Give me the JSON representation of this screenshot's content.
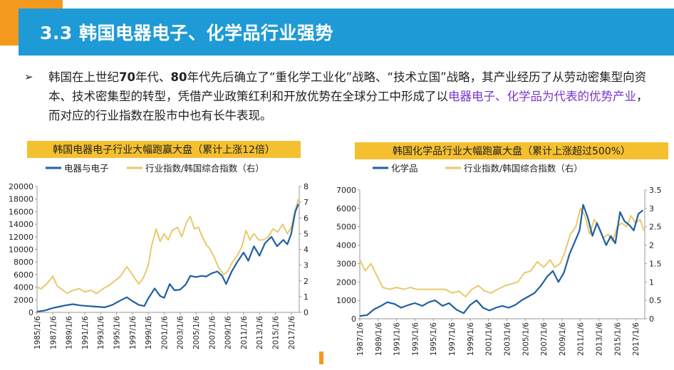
{
  "slide": {
    "title": "3.3 韩国电器电子、化学品行业强势",
    "bullet_symbol": "➢",
    "para_parts": [
      "韩国在上世纪",
      "70",
      "年代、",
      "80",
      "年代先后确立了“重化学工业化”战略、“技术立国”战略，其产业经历了从劳动密集型向资本、技术密集型的转型，凭借产业政策红利和开放优势在全球分工中形成了以",
      "电器电子、化学品为代表的优势产业",
      "，而对应的行业指数在股市中也有长牛表现。"
    ]
  },
  "colors": {
    "accent": "#1e9ad6",
    "orange": "#f39a1e",
    "label_bg": "#f5c030",
    "series_blue": "#1f5fa0",
    "series_gold": "#e8c96a",
    "highlight": "#7b35c9"
  },
  "chart_data": [
    {
      "type": "line",
      "title": "韩国电器电子行业大幅跑赢大盘（累计上涨12倍）",
      "series": [
        {
          "name": "电器与电子",
          "axis": "left",
          "x": [
            1985.0,
            1986.0,
            1987.0,
            1987.8,
            1988.5,
            1989.5,
            1990.5,
            1991.5,
            1992.5,
            1993.5,
            1994.5,
            1995.5,
            1996.3,
            1997.0,
            1997.8,
            1998.5,
            1999.0,
            1999.8,
            2000.5,
            2001.0,
            2001.7,
            2002.3,
            2003.0,
            2003.7,
            2004.3,
            2005.0,
            2005.7,
            2006.3,
            2007.0,
            2007.7,
            2008.3,
            2008.8,
            2009.5,
            2010.2,
            2011.0,
            2011.6,
            2012.3,
            2013.0,
            2013.7,
            2014.5,
            2015.2,
            2016.0,
            2016.5,
            2017.0,
            2017.5,
            2017.9
          ],
          "values": [
            100,
            300,
            700,
            900,
            1100,
            1300,
            1100,
            1000,
            900,
            800,
            1200,
            1900,
            2400,
            1800,
            1200,
            1000,
            2200,
            3800,
            2600,
            2300,
            4500,
            3500,
            3600,
            4400,
            5800,
            5600,
            5800,
            5700,
            6200,
            6500,
            5800,
            4500,
            6500,
            8000,
            9500,
            8200,
            10500,
            9000,
            11000,
            12000,
            10500,
            11500,
            10800,
            12500,
            16000,
            17200
          ]
        },
        {
          "name": "行业指数/韩国综合指数（右）",
          "axis": "right",
          "x": [
            1985.0,
            1985.5,
            1986.2,
            1987.0,
            1987.5,
            1988.0,
            1988.8,
            1989.5,
            1990.3,
            1991.0,
            1991.8,
            1992.5,
            1993.3,
            1994.0,
            1994.8,
            1995.5,
            1996.3,
            1997.0,
            1997.8,
            1998.4,
            1999.0,
            1999.4,
            2000.0,
            2000.5,
            2001.0,
            2001.5,
            2002.0,
            2002.7,
            2003.2,
            2003.8,
            2004.3,
            2004.8,
            2005.3,
            2005.8,
            2006.3,
            2006.8,
            2007.3,
            2007.9,
            2008.5,
            2009.0,
            2009.6,
            2010.2,
            2010.8,
            2011.3,
            2011.8,
            2012.3,
            2012.9,
            2013.5,
            2014.1,
            2014.7,
            2015.3,
            2015.9,
            2016.5,
            2017.0,
            2017.5,
            2017.9
          ],
          "values": [
            1.6,
            1.5,
            1.8,
            2.3,
            1.7,
            1.5,
            1.2,
            1.4,
            1.5,
            1.3,
            1.4,
            1.2,
            1.5,
            1.7,
            2.0,
            2.3,
            2.9,
            2.4,
            1.8,
            2.2,
            3.0,
            4.2,
            5.3,
            4.5,
            5.0,
            4.6,
            5.2,
            5.4,
            4.8,
            5.7,
            6.1,
            5.3,
            5.4,
            4.8,
            4.3,
            4.0,
            3.5,
            2.8,
            2.4,
            2.6,
            3.2,
            3.6,
            4.2,
            5.2,
            4.6,
            5.0,
            4.6,
            4.6,
            4.8,
            5.3,
            5.1,
            5.6,
            5.0,
            5.4,
            6.5,
            7.2
          ]
        }
      ],
      "x_ticks": [
        "1985/1/6",
        "1987/1/6",
        "1989/1/6",
        "1991/1/6",
        "1993/1/6",
        "1995/1/6",
        "1997/1/6",
        "1999/1/6",
        "2001/1/6",
        "2003/1/6",
        "2005/1/6",
        "2007/1/6",
        "2009/1/6",
        "2011/1/6",
        "2013/1/6",
        "2015/1/6",
        "2017/1/6"
      ],
      "y_left_ticks": [
        "0",
        "2000",
        "4000",
        "6000",
        "8000",
        "10000",
        "12000",
        "14000",
        "16000",
        "18000",
        "20000"
      ],
      "y_right_ticks": [
        "0",
        "1",
        "2",
        "3",
        "4",
        "5",
        "6",
        "7",
        "8"
      ],
      "ylim_left": [
        0,
        20000
      ],
      "ylim_right": [
        0,
        8
      ],
      "xlim": [
        1985.0,
        2018.0
      ]
    },
    {
      "type": "line",
      "title": "韩国化学品行业大幅跑赢大盘（累计上涨超过500%）",
      "series": [
        {
          "name": "化学品",
          "axis": "left",
          "x": [
            1987.0,
            1987.8,
            1988.5,
            1989.3,
            1990.0,
            1990.8,
            1991.5,
            1992.3,
            1993.0,
            1993.8,
            1994.5,
            1995.2,
            1996.0,
            1996.7,
            1997.5,
            1998.3,
            1999.0,
            1999.7,
            2000.4,
            2001.1,
            2001.8,
            2002.5,
            2003.2,
            2003.9,
            2004.6,
            2005.3,
            2006.0,
            2006.7,
            2007.4,
            2008.0,
            2008.6,
            2009.2,
            2009.8,
            2010.4,
            2010.9,
            2011.3,
            2011.8,
            2012.3,
            2012.8,
            2013.3,
            2013.8,
            2014.3,
            2014.8,
            2015.3,
            2015.8,
            2016.3,
            2016.8,
            2017.3,
            2017.8
          ],
          "values": [
            150,
            200,
            500,
            700,
            900,
            800,
            600,
            750,
            850,
            700,
            900,
            1000,
            700,
            850,
            500,
            300,
            750,
            1000,
            600,
            450,
            600,
            700,
            600,
            750,
            1000,
            1200,
            1400,
            1800,
            2300,
            2600,
            2000,
            2500,
            3500,
            4200,
            4800,
            6200,
            5500,
            4500,
            5200,
            4600,
            4000,
            4500,
            4100,
            5800,
            5300,
            5100,
            4800,
            5700,
            5900
          ]
        },
        {
          "name": "行业指数/韩国综合指数（右）",
          "axis": "right",
          "x": [
            1987.0,
            1987.6,
            1988.2,
            1988.8,
            1989.5,
            1990.2,
            1991.0,
            1991.8,
            1992.5,
            1993.2,
            1994.0,
            1994.8,
            1995.5,
            1996.3,
            1997.0,
            1997.8,
            1998.5,
            1999.2,
            1999.9,
            2000.6,
            2001.3,
            2002.0,
            2002.8,
            2003.5,
            2004.2,
            2004.9,
            2005.6,
            2006.3,
            2007.0,
            2007.7,
            2008.2,
            2008.8,
            2009.3,
            2009.9,
            2010.5,
            2011.0,
            2011.5,
            2012.0,
            2012.5,
            2013.0,
            2013.5,
            2014.0,
            2014.5,
            2015.0,
            2015.5,
            2016.0,
            2016.5,
            2017.0,
            2017.5,
            2017.9
          ],
          "values": [
            1.6,
            1.3,
            1.5,
            1.2,
            0.85,
            0.8,
            0.85,
            0.8,
            0.85,
            0.8,
            0.8,
            0.8,
            0.8,
            0.8,
            0.7,
            0.75,
            0.6,
            0.8,
            0.9,
            0.75,
            0.7,
            0.8,
            0.9,
            0.95,
            1.0,
            1.25,
            1.3,
            1.55,
            1.4,
            1.6,
            1.4,
            1.5,
            1.8,
            2.3,
            2.5,
            3.0,
            2.8,
            2.3,
            2.7,
            2.5,
            2.2,
            2.3,
            2.1,
            2.5,
            2.6,
            2.5,
            2.8,
            2.6,
            2.7,
            2.4
          ]
        }
      ],
      "x_ticks": [
        "1987/1/6",
        "1989/1/6",
        "1991/1/6",
        "1993/1/6",
        "1995/1/6",
        "1997/1/6",
        "1999/1/6",
        "2001/1/6",
        "2003/1/6",
        "2005/1/6",
        "2007/1/6",
        "2009/1/6",
        "2011/1/6",
        "2013/1/6",
        "2015/1/6",
        "2017/1/6"
      ],
      "y_left_ticks": [
        "0",
        "1000",
        "2000",
        "3000",
        "4000",
        "5000",
        "6000",
        "7000"
      ],
      "y_right_ticks": [
        "0",
        "0.5",
        "1",
        "1.5",
        "2",
        "2.5",
        "3",
        "3.5"
      ],
      "ylim_left": [
        0,
        7000
      ],
      "ylim_right": [
        0,
        3.5
      ],
      "xlim": [
        1987.0,
        2018.0
      ]
    }
  ]
}
